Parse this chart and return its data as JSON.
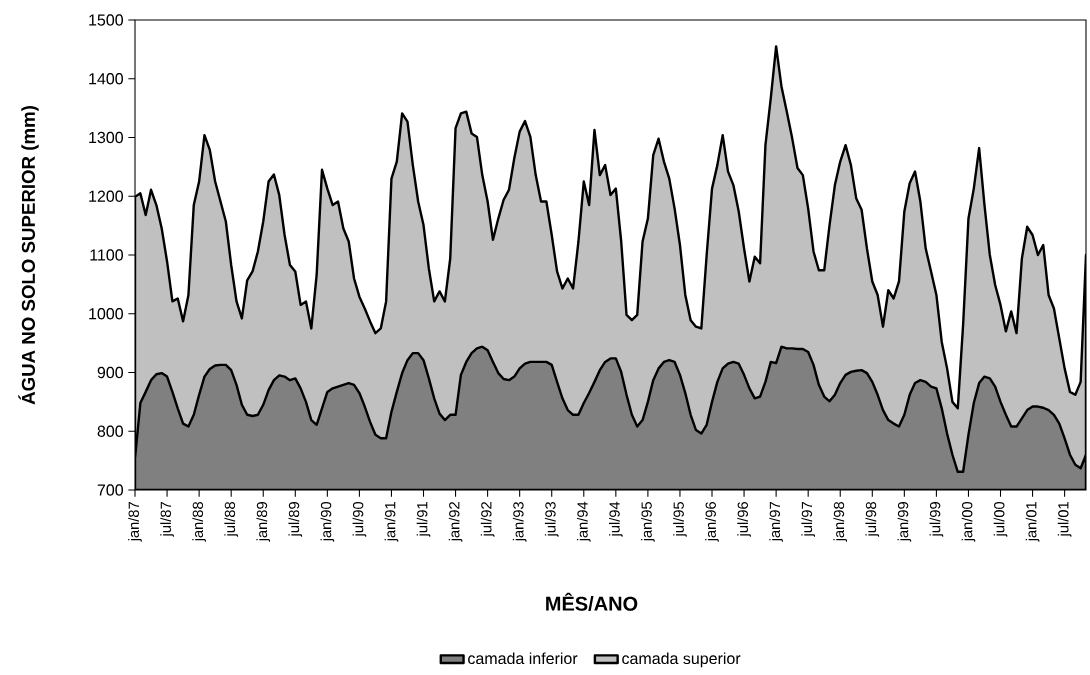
{
  "chart_data": {
    "type": "area",
    "xlabel": "MÊS/ANO",
    "ylabel": "ÁGUA NO SOLO SUPERIOR (mm)",
    "categories": [
      "jan/87",
      null,
      null,
      null,
      null,
      null,
      "jul/87",
      null,
      null,
      null,
      null,
      null,
      "jan/88",
      null,
      null,
      null,
      null,
      null,
      "jul/88",
      null,
      null,
      null,
      null,
      null,
      "jan/89",
      null,
      null,
      null,
      null,
      null,
      "jul/89",
      null,
      null,
      null,
      null,
      null,
      "jan/90",
      null,
      null,
      null,
      null,
      null,
      "jul/90",
      null,
      null,
      null,
      null,
      null,
      "jan/91",
      null,
      null,
      null,
      null,
      null,
      "jul/91",
      null,
      null,
      null,
      null,
      null,
      "jan/92",
      null,
      null,
      null,
      null,
      null,
      "jul/92",
      null,
      null,
      null,
      null,
      null,
      "jan/93",
      null,
      null,
      null,
      null,
      null,
      "jul/93",
      null,
      null,
      null,
      null,
      null,
      "jan/94",
      null,
      null,
      null,
      null,
      null,
      "jul/94",
      null,
      null,
      null,
      null,
      null,
      "jan/95",
      null,
      null,
      null,
      null,
      null,
      "jul/95",
      null,
      null,
      null,
      null,
      null,
      "jan/96",
      null,
      null,
      null,
      null,
      null,
      "jul/96",
      null,
      null,
      null,
      null,
      null,
      "jan/97",
      null,
      null,
      null,
      null,
      null,
      "jul/97",
      null,
      null,
      null,
      null,
      null,
      "jan/98",
      null,
      null,
      null,
      null,
      null,
      "jul/98",
      null,
      null,
      null,
      null,
      null,
      "jan/99",
      null,
      null,
      null,
      null,
      null,
      "jul/99",
      null,
      null,
      null,
      null,
      null,
      "jan/00",
      null,
      null,
      null,
      null,
      null,
      "jul/00",
      null,
      null,
      null,
      null,
      null,
      "jan/01",
      null,
      null,
      null,
      null,
      null,
      "jul/01",
      null,
      null,
      null,
      null
    ],
    "series": [
      {
        "name": "camada inferior",
        "color": "#808080",
        "values": [
          754,
          848,
          867,
          887,
          897,
          899,
          893,
          867,
          839,
          813,
          808,
          828,
          862,
          893,
          906,
          912,
          913,
          913,
          904,
          879,
          845,
          828,
          826,
          828,
          845,
          870,
          887,
          895,
          893,
          887,
          890,
          873,
          850,
          819,
          811,
          839,
          867,
          873,
          876,
          879,
          882,
          879,
          865,
          842,
          816,
          794,
          788,
          788,
          833,
          867,
          899,
          921,
          933,
          933,
          921,
          890,
          856,
          830,
          819,
          828,
          828,
          896,
          918,
          933,
          941,
          944,
          938,
          918,
          899,
          889,
          887,
          893,
          907,
          915,
          918,
          918,
          918,
          918,
          913,
          884,
          856,
          836,
          828,
          828,
          848,
          865,
          884,
          904,
          918,
          924,
          924,
          901,
          862,
          828,
          808,
          819,
          850,
          887,
          907,
          918,
          921,
          918,
          896,
          865,
          828,
          802,
          796,
          811,
          850,
          884,
          907,
          915,
          918,
          915,
          896,
          873,
          856,
          859,
          884,
          918,
          916,
          944,
          941,
          941,
          940,
          940,
          935,
          913,
          879,
          859,
          851,
          862,
          882,
          896,
          901,
          903,
          904,
          899,
          884,
          862,
          836,
          819,
          813,
          808,
          828,
          862,
          882,
          887,
          884,
          876,
          873,
          839,
          796,
          760,
          731,
          731,
          794,
          848,
          882,
          893,
          890,
          876,
          850,
          828,
          808,
          808,
          822,
          836,
          842,
          842,
          840,
          836,
          828,
          813,
          788,
          760,
          743,
          737,
          760
        ]
      },
      {
        "name": "camada superior",
        "color": "#c0c0c0",
        "values": [
          1199,
          1205,
          1168,
          1211,
          1185,
          1145,
          1089,
          1021,
          1026,
          987,
          1032,
          1185,
          1225,
          1304,
          1279,
          1225,
          1191,
          1157,
          1083,
          1021,
          992,
          1057,
          1072,
          1106,
          1157,
          1225,
          1237,
          1202,
          1134,
          1083,
          1072,
          1015,
          1021,
          975,
          1066,
          1245,
          1213,
          1185,
          1191,
          1145,
          1123,
          1060,
          1029,
          1009,
          987,
          967,
          975,
          1021,
          1230,
          1259,
          1341,
          1327,
          1253,
          1191,
          1151,
          1077,
          1021,
          1038,
          1021,
          1094,
          1316,
          1341,
          1344,
          1307,
          1301,
          1236,
          1191,
          1126,
          1162,
          1194,
          1211,
          1265,
          1310,
          1328,
          1301,
          1236,
          1191,
          1191,
          1134,
          1072,
          1043,
          1060,
          1043,
          1123,
          1225,
          1185,
          1313,
          1236,
          1253,
          1202,
          1213,
          1123,
          998,
          989,
          998,
          1123,
          1162,
          1270,
          1298,
          1259,
          1230,
          1179,
          1117,
          1032,
          989,
          978,
          975,
          1100,
          1213,
          1253,
          1304,
          1242,
          1219,
          1174,
          1111,
          1055,
          1097,
          1086,
          1287,
          1367,
          1455,
          1387,
          1344,
          1299,
          1248,
          1236,
          1179,
          1106,
          1074,
          1074,
          1151,
          1219,
          1259,
          1287,
          1253,
          1196,
          1177,
          1111,
          1055,
          1032,
          978,
          1040,
          1026,
          1055,
          1174,
          1222,
          1242,
          1191,
          1111,
          1072,
          1032,
          952,
          907,
          850,
          839,
          981,
          1162,
          1213,
          1282,
          1185,
          1100,
          1049,
          1015,
          970,
          1004,
          967,
          1094,
          1148,
          1134,
          1100,
          1117,
          1032,
          1009,
          958,
          907,
          867,
          862,
          884,
          1100
        ]
      }
    ],
    "ylim": [
      700,
      1500
    ],
    "yticks": [
      700,
      800,
      900,
      1000,
      1100,
      1200,
      1300,
      1400,
      1500
    ],
    "legend": "bottom"
  }
}
